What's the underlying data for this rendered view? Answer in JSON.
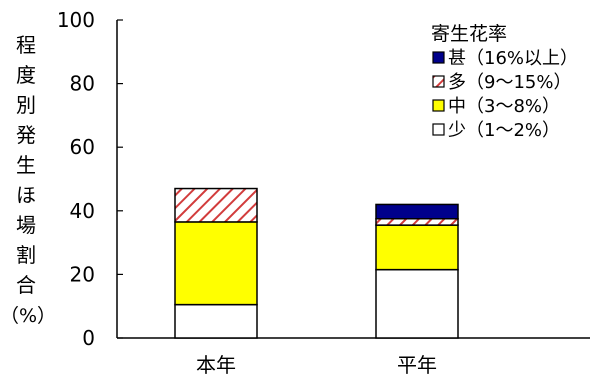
{
  "chart_data": {
    "type": "bar",
    "stacked": true,
    "categories": [
      "本年",
      "平年"
    ],
    "ylabel": "程度別発生ほ場割合（%）",
    "ylim": [
      0,
      100
    ],
    "yticks": [
      0,
      20,
      40,
      60,
      80,
      100
    ],
    "legend_title": "寄生花率",
    "legend_position": "top-right",
    "grid": false,
    "series": [
      {
        "name": "少（1〜2%）",
        "values": [
          10.5,
          21.5
        ],
        "color": "#ffffff",
        "pattern": "none"
      },
      {
        "name": "中（3〜8%）",
        "values": [
          26.0,
          14.0
        ],
        "color": "#ffff00",
        "pattern": "none"
      },
      {
        "name": "多（9〜15%）",
        "values": [
          10.5,
          2.0
        ],
        "color": "#d23c3c",
        "pattern": "diagonal-hatch"
      },
      {
        "name": "甚（16%以上）",
        "values": [
          0,
          4.5
        ],
        "color": "#00008b",
        "pattern": "none"
      }
    ]
  }
}
